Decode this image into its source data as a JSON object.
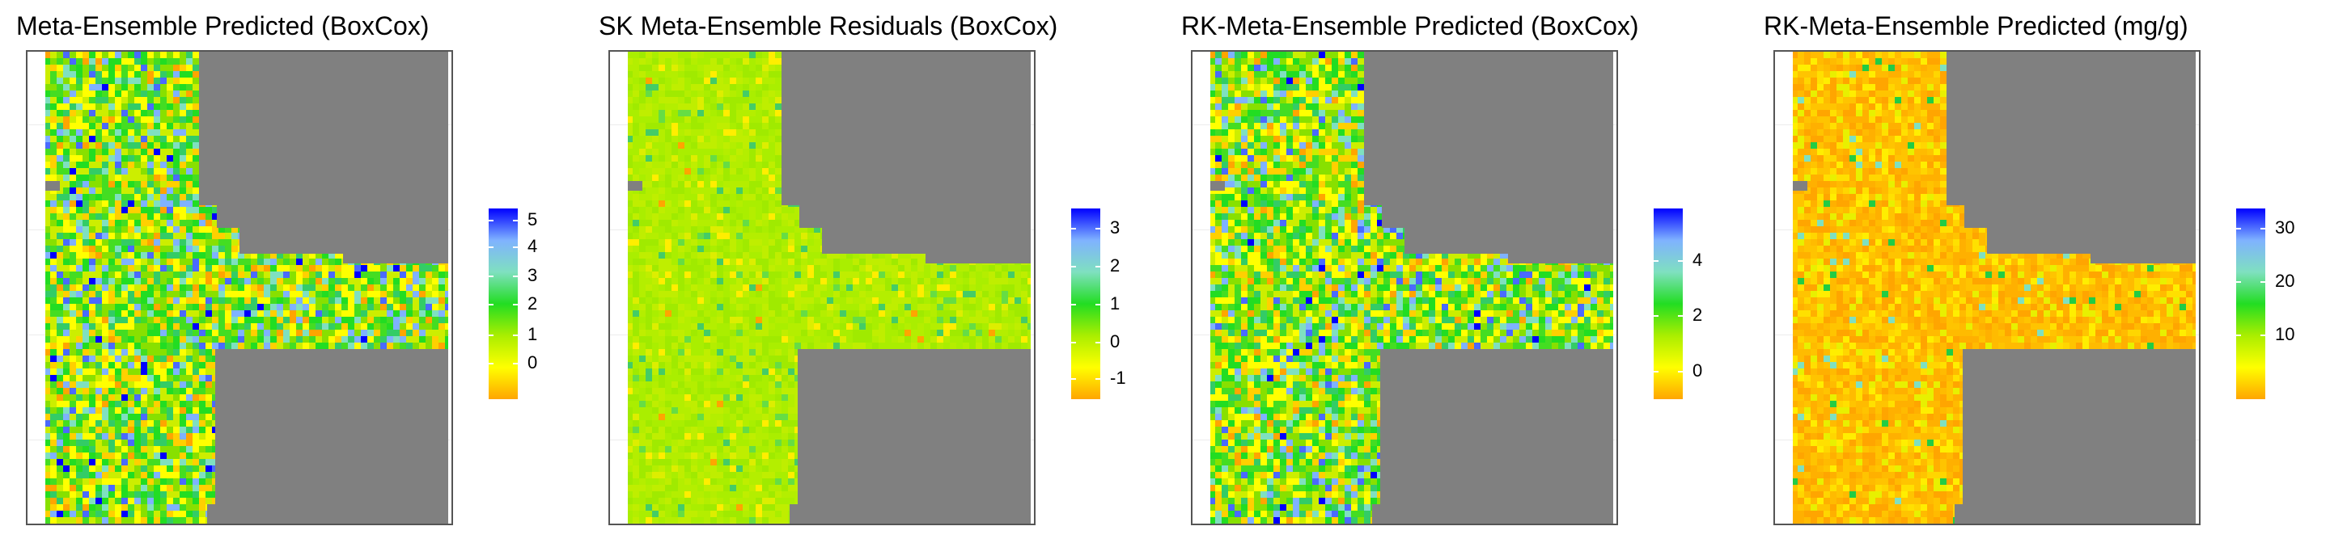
{
  "panels": [
    {
      "title": "Meta-Ensemble Predicted (BoxCox)",
      "scheme": "varied",
      "legend": {
        "ticks": [
          "5",
          "4",
          "3",
          "2",
          "1",
          "0"
        ],
        "tick_fractions": [
          0.06,
          0.2,
          0.35,
          0.5,
          0.66,
          0.81
        ]
      }
    },
    {
      "title": "SK Meta-Ensemble Residuals (BoxCox)",
      "scheme": "residual",
      "legend": {
        "ticks": [
          "3",
          "2",
          "1",
          "0",
          "-1"
        ],
        "tick_fractions": [
          0.1,
          0.3,
          0.5,
          0.7,
          0.89
        ]
      }
    },
    {
      "title": "RK-Meta-Ensemble Predicted (BoxCox)",
      "scheme": "varied",
      "legend": {
        "ticks": [
          "4",
          "2",
          "0"
        ],
        "tick_fractions": [
          0.27,
          0.56,
          0.85
        ]
      }
    },
    {
      "title": "RK-Meta-Ensemble Predicted (mg/g)",
      "scheme": "orange",
      "legend": {
        "ticks": [
          "30",
          "20",
          "10"
        ],
        "tick_fractions": [
          0.1,
          0.38,
          0.66
        ]
      }
    }
  ],
  "colors": {
    "no_data": "#808080",
    "colorbar": [
      "#0000ff",
      "#7fb2ff",
      "#7fe0c0",
      "#22dd22",
      "#aaee00",
      "#ffff00",
      "#ffa500"
    ]
  }
}
